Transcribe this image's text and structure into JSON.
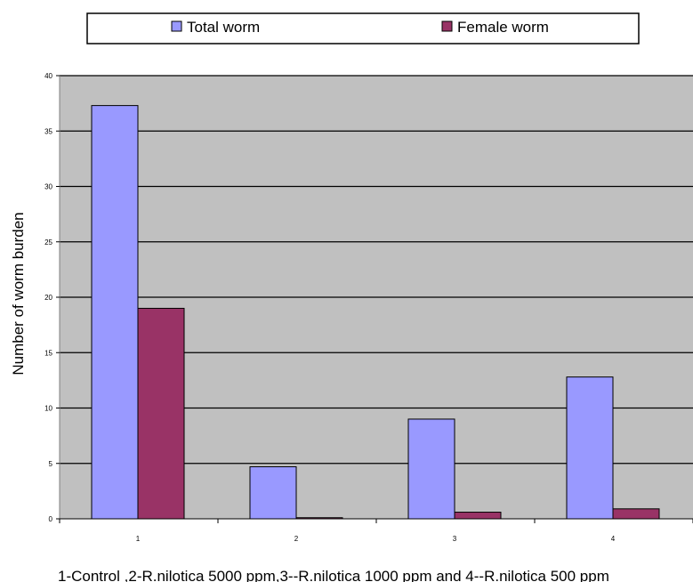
{
  "chart_data": {
    "type": "bar",
    "title": "",
    "xlabel": "1-Control ,2-R.nilotica 5000 ppm,3--R.nilotica 1000 ppm and 4--R.nilotica 500 ppm",
    "ylabel": "Number of worm burden",
    "categories": [
      "1",
      "2",
      "3",
      "4"
    ],
    "series": [
      {
        "name": "Total worm",
        "values": [
          37.3,
          4.7,
          9.0,
          12.8
        ],
        "color": "#9999ff"
      },
      {
        "name": "Female worm",
        "values": [
          19.0,
          0.1,
          0.6,
          0.9
        ],
        "color": "#993366"
      }
    ],
    "ylim": [
      0,
      40
    ],
    "yticks": [
      0,
      5,
      10,
      15,
      20,
      25,
      30,
      35,
      40
    ],
    "grid": true,
    "legend_position": "top",
    "plot_background": "#c0c0c0"
  }
}
